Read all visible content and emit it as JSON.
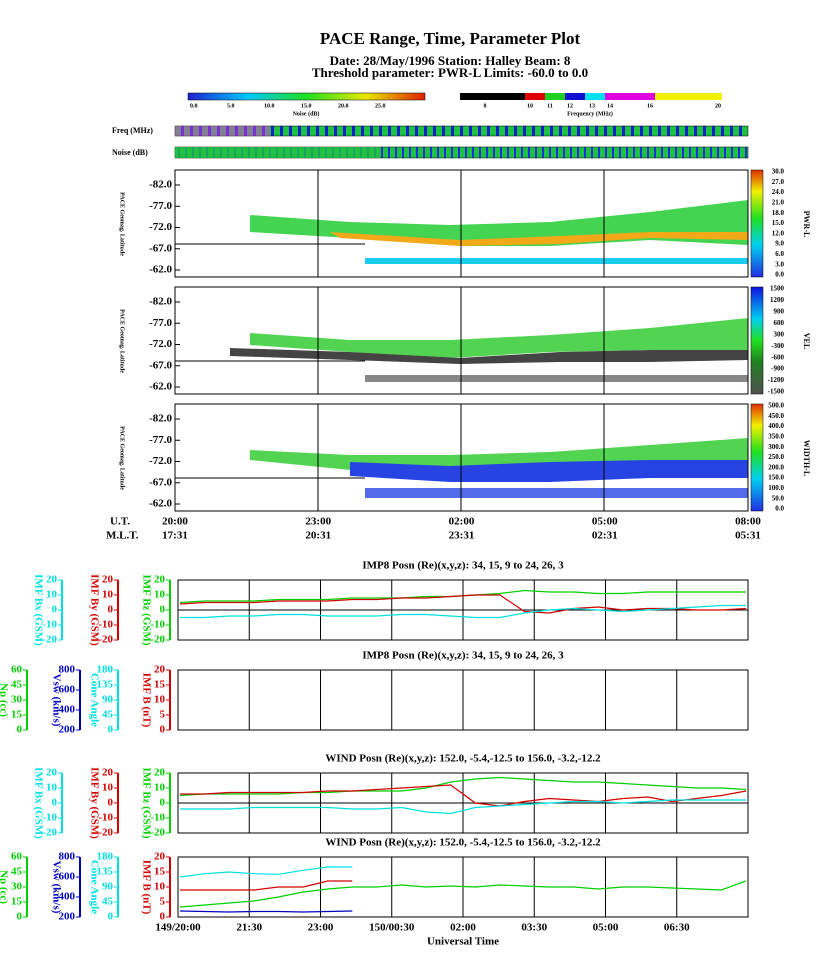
{
  "header": {
    "title": "PACE Range, Time, Parameter Plot",
    "date_line": "Date: 28/May/1996  Station: Halley  Beam: 8",
    "threshold_line": "Threshold parameter: PWR-L       Limits: -60.0 to  0.0"
  },
  "noise_scale": {
    "label": "Noise (dB)",
    "ticks": [
      "0.0",
      "5.0",
      "10.0",
      "15.0",
      "20.0",
      "25.0"
    ]
  },
  "frequency_scale": {
    "label": "Frequency (MHz)",
    "ticks": [
      "8",
      "10",
      "11",
      "12",
      "13",
      "14",
      "16",
      "20"
    ]
  },
  "strips": [
    "Freq (MHz)",
    "Noise (dB)"
  ],
  "radar_panels": [
    {
      "y_label": "PACE Geomag. Latitude",
      "param": "PWR-L",
      "yticks": [
        "-82.0",
        "-77.0",
        "-72.0",
        "-67.0",
        "-62.0"
      ],
      "scale": [
        "30.0",
        "27.0",
        "24.0",
        "21.0",
        "18.0",
        "15.0",
        "12.0",
        "9.0",
        "6.0",
        "3.0",
        "0.0"
      ]
    },
    {
      "y_label": "PACE Geomag. Latitude",
      "param": "VEL",
      "yticks": [
        "-82.0",
        "-77.0",
        "-72.0",
        "-67.0",
        "-62.0"
      ],
      "scale": [
        "1500",
        "1200",
        "900",
        "600",
        "300",
        "-300",
        "-600",
        "-900",
        "-1200",
        "-1500"
      ]
    },
    {
      "y_label": "PACE Geomag. Latitude",
      "param": "WIDTH-L",
      "yticks": [
        "-82.0",
        "-77.0",
        "-72.0",
        "-67.0",
        "-62.0"
      ],
      "scale": [
        "500.0",
        "450.0",
        "400.0",
        "350.0",
        "300.0",
        "250.0",
        "200.0",
        "150.0",
        "100.0",
        "50.0",
        "0.0"
      ]
    }
  ],
  "time_axis": {
    "ut_label": "U.T.",
    "ut": [
      "20:00",
      "23:00",
      "02:00",
      "05:00",
      "08:00"
    ],
    "mlt_label": "M.L.T.",
    "mlt": [
      "17:31",
      "20:31",
      "23:31",
      "02:31",
      "05:31"
    ]
  },
  "imf_panels": [
    {
      "title": "IMP8 Posn (Re)(x,y,z):  34, 15,  9 to  24, 26,  3",
      "axes": [
        {
          "label": "IMF Bx (GSM)",
          "color": "#00e0e0",
          "ticks": [
            20,
            10,
            0,
            -10,
            -20
          ]
        },
        {
          "label": "IMF By (GSM)",
          "color": "#d00000",
          "ticks": [
            20,
            10,
            0,
            -10,
            -20
          ]
        },
        {
          "label": "IMF Bz (GSM)",
          "color": "#00d000",
          "ticks": [
            20,
            10,
            0,
            -10,
            -20
          ]
        }
      ],
      "series": [
        {
          "axis": 2,
          "color": "#00d000",
          "values": [
            5,
            6,
            6,
            6,
            7,
            7,
            7,
            8,
            8,
            8,
            9,
            9,
            10,
            11,
            13,
            12,
            12,
            11,
            11,
            12,
            12,
            12,
            12,
            12
          ]
        },
        {
          "axis": 1,
          "color": "#d00000",
          "values": [
            4,
            5,
            5,
            5,
            6,
            6,
            6,
            7,
            7,
            8,
            8,
            9,
            10,
            10,
            -1,
            -2,
            1,
            2,
            0,
            1,
            1,
            0,
            0,
            1
          ]
        },
        {
          "axis": 0,
          "color": "#00e0e0",
          "values": [
            -5,
            -5,
            -4,
            -4,
            -3,
            -3,
            -4,
            -4,
            -4,
            -3,
            -3,
            -4,
            -5,
            -5,
            -2,
            0,
            1,
            0,
            -1,
            0,
            1,
            2,
            3,
            3
          ]
        }
      ]
    },
    {
      "title": "IMP8 Posn (Re)(x,y,z):  34, 15,  9 to  24, 26,  3",
      "axes": [
        {
          "label": "Np (cc)",
          "color": "#00d000",
          "ticks": [
            60,
            45,
            30,
            15,
            0
          ]
        },
        {
          "label": "Vsw (km/s)",
          "color": "#0000c0",
          "ticks": [
            800,
            600,
            400,
            200
          ]
        },
        {
          "label": "Cone Angle",
          "color": "#00e0e0",
          "ticks": [
            180,
            135,
            90,
            45,
            0
          ]
        },
        {
          "label": "IMF B (nT)",
          "color": "#d00000",
          "ticks": [
            20,
            15,
            10,
            5,
            0
          ]
        }
      ],
      "series": []
    },
    {
      "title": "WIND Posn (Re)(x,y,z): 152.0, -5.4,-12.5 to 156.0, -3.2,-12.2",
      "axes": [
        {
          "label": "IMF Bx (GSM)",
          "color": "#00e0e0",
          "ticks": [
            20,
            10,
            0,
            -10,
            -20
          ]
        },
        {
          "label": "IMF By (GSM)",
          "color": "#d00000",
          "ticks": [
            20,
            10,
            0,
            -10,
            -20
          ]
        },
        {
          "label": "IMF Bz (GSM)",
          "color": "#00d000",
          "ticks": [
            20,
            10,
            0,
            -10,
            -20
          ]
        }
      ],
      "series": [
        {
          "axis": 2,
          "color": "#00d000",
          "values": [
            5,
            6,
            6,
            6,
            6,
            7,
            7,
            8,
            8,
            8,
            10,
            14,
            16,
            17,
            16,
            15,
            14,
            14,
            13,
            12,
            11,
            10,
            10,
            9
          ]
        },
        {
          "axis": 1,
          "color": "#d00000",
          "values": [
            6,
            6,
            7,
            7,
            7,
            7,
            8,
            8,
            9,
            10,
            11,
            12,
            0,
            -2,
            1,
            3,
            2,
            1,
            3,
            4,
            1,
            3,
            5,
            8
          ]
        },
        {
          "axis": 0,
          "color": "#00e0e0",
          "values": [
            -4,
            -4,
            -4,
            -3,
            -3,
            -3,
            -3,
            -4,
            -4,
            -3,
            -6,
            -7,
            -3,
            -2,
            -1,
            0,
            1,
            1,
            0,
            1,
            2,
            2,
            2,
            2
          ]
        }
      ]
    },
    {
      "title": "WIND Posn (Re)(x,y,z): 152.0, -5.4,-12.5 to 156.0, -3.2,-12.2",
      "axes": [
        {
          "label": "Np (cc)",
          "color": "#00d000",
          "ticks": [
            60,
            45,
            30,
            15,
            0
          ]
        },
        {
          "label": "Vsw (km/s)",
          "color": "#0000c0",
          "ticks": [
            800,
            600,
            400,
            200
          ]
        },
        {
          "label": "Cone Angle",
          "color": "#00e0e0",
          "ticks": [
            180,
            135,
            90,
            45,
            0
          ]
        },
        {
          "label": "IMF B (nT)",
          "color": "#d00000",
          "ticks": [
            20,
            15,
            10,
            5,
            0
          ]
        }
      ],
      "series": [
        {
          "axis": 0,
          "color": "#00d000",
          "values": [
            10,
            12,
            14,
            16,
            20,
            25,
            28,
            30,
            30,
            32,
            30,
            31,
            30,
            32,
            31,
            30,
            30,
            28,
            30,
            30,
            29,
            28,
            27,
            36
          ]
        },
        {
          "axis": 2,
          "color": "#00e0e0",
          "values": [
            120,
            130,
            135,
            130,
            128,
            140,
            150,
            150,
            null,
            null,
            null,
            null,
            null,
            null,
            null,
            null,
            null,
            null,
            null,
            null,
            null,
            null,
            null,
            null
          ]
        },
        {
          "axis": 3,
          "color": "#d00000",
          "values": [
            9,
            9,
            9,
            9,
            10,
            10,
            12,
            12,
            null,
            null,
            null,
            null,
            null,
            null,
            null,
            null,
            null,
            null,
            null,
            null,
            null,
            null,
            null,
            null
          ]
        },
        {
          "axis": 1,
          "color": "#0000c0",
          "values": [
            260,
            255,
            250,
            255,
            255,
            250,
            255,
            260,
            null,
            null,
            null,
            null,
            null,
            null,
            null,
            null,
            null,
            null,
            null,
            null,
            null,
            null,
            null,
            null
          ]
        }
      ]
    }
  ],
  "imf_x": {
    "ticks": [
      "149/20:00",
      "21:30",
      "23:00",
      "150/00:30",
      "02:00",
      "03:30",
      "05:00",
      "06:30"
    ],
    "label": "Universal Time"
  }
}
